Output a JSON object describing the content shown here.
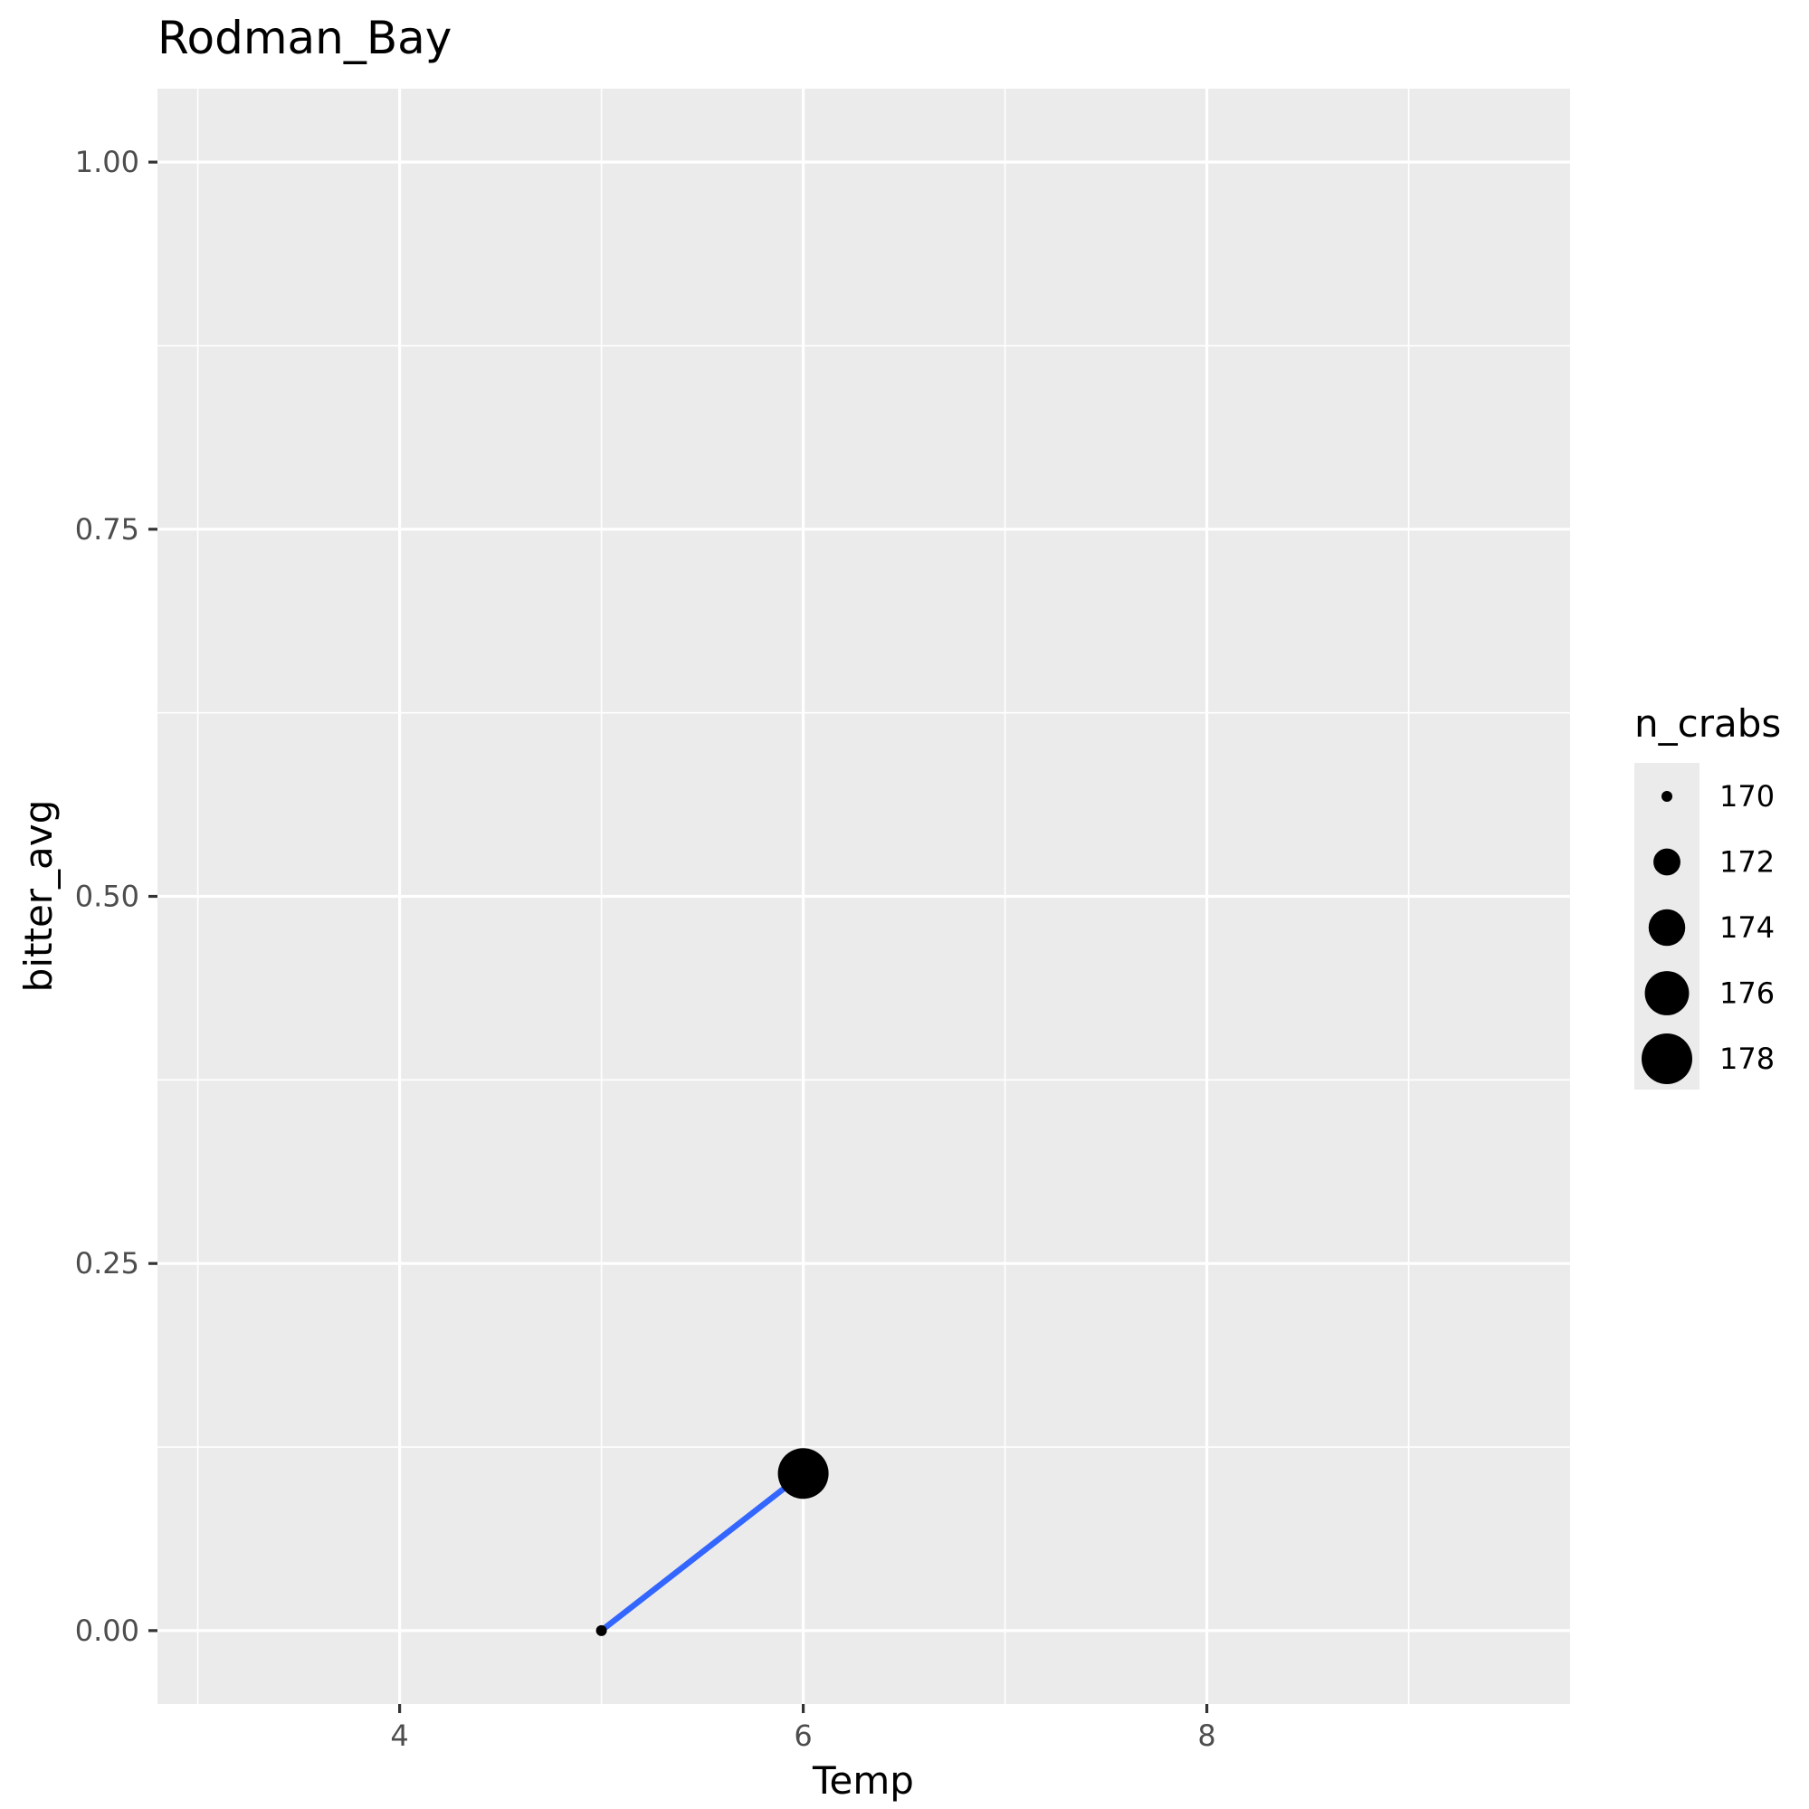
{
  "chart_data": {
    "type": "scatter",
    "title": "Rodman_Bay",
    "xlabel": "Temp",
    "ylabel": "bitter_avg",
    "xlim": [
      2.8,
      9.8
    ],
    "ylim": [
      -0.05,
      1.05
    ],
    "x_ticks": [
      {
        "value": 4,
        "label": "4"
      },
      {
        "value": 6,
        "label": "6"
      },
      {
        "value": 8,
        "label": "8"
      }
    ],
    "x_minor_ticks": [
      3,
      5,
      7,
      9
    ],
    "y_ticks": [
      {
        "value": 0,
        "label": "0.00"
      },
      {
        "value": 0.25,
        "label": "0.25"
      },
      {
        "value": 0.5,
        "label": "0.50"
      },
      {
        "value": 0.75,
        "label": "0.75"
      },
      {
        "value": 1,
        "label": "1.00"
      }
    ],
    "y_minor_ticks": [
      0.125,
      0.375,
      0.625,
      0.875
    ],
    "grid": true,
    "panel_background": "#ebebeb",
    "grid_color": "#ffffff",
    "points": [
      {
        "x": 5,
        "y": 0.0,
        "n_crabs": 170
      },
      {
        "x": 6,
        "y": 0.107,
        "n_crabs": 178
      }
    ],
    "line": {
      "color": "#3366ff",
      "points": [
        {
          "x": 5,
          "y": 0.0
        },
        {
          "x": 6,
          "y": 0.107
        }
      ]
    },
    "point_color": "#000000",
    "size_legend": {
      "title": "n_crabs",
      "placement": "right",
      "entries": [
        {
          "value": 170,
          "label": "170"
        },
        {
          "value": 172,
          "label": "172"
        },
        {
          "value": 174,
          "label": "174"
        },
        {
          "value": 176,
          "label": "176"
        },
        {
          "value": 178,
          "label": "178"
        }
      ]
    }
  }
}
